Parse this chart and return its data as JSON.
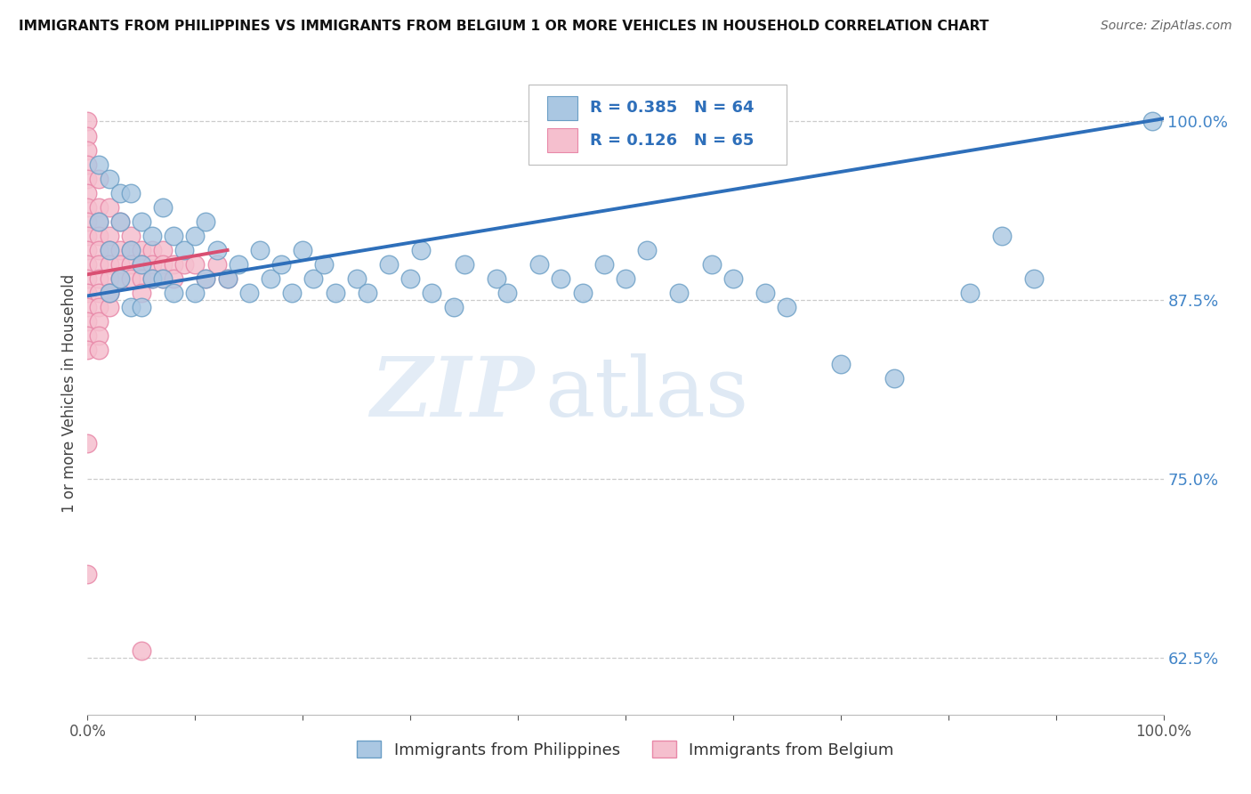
{
  "title": "IMMIGRANTS FROM PHILIPPINES VS IMMIGRANTS FROM BELGIUM 1 OR MORE VEHICLES IN HOUSEHOLD CORRELATION CHART",
  "source": "Source: ZipAtlas.com",
  "ylabel": "1 or more Vehicles in Household",
  "xlim": [
    0,
    1.0
  ],
  "ylim": [
    0.585,
    1.035
  ],
  "yticks": [
    0.625,
    0.75,
    0.875,
    1.0
  ],
  "ytick_labels": [
    "62.5%",
    "75.0%",
    "87.5%",
    "100.0%"
  ],
  "xticks": [
    0.0,
    0.1,
    0.2,
    0.3,
    0.4,
    0.5,
    0.6,
    0.7,
    0.8,
    0.9,
    1.0
  ],
  "xtick_labels": [
    "0.0%",
    "",
    "",
    "",
    "",
    "",
    "",
    "",
    "",
    "",
    "100.0%"
  ],
  "philippines_color": "#aac7e2",
  "philippines_edge": "#6a9ec5",
  "belgium_color": "#f5bfce",
  "belgium_edge": "#e888a8",
  "trend_philippines_color": "#2e6fba",
  "trend_belgium_color": "#d94f72",
  "R_philippines": 0.385,
  "N_philippines": 64,
  "R_belgium": 0.126,
  "N_belgium": 65,
  "legend_label_philippines": "Immigrants from Philippines",
  "legend_label_belgium": "Immigrants from Belgium",
  "background_color": "#ffffff",
  "watermark_zip": "ZIP",
  "watermark_atlas": "atlas",
  "philippines_x": [
    0.01,
    0.01,
    0.02,
    0.02,
    0.02,
    0.03,
    0.03,
    0.03,
    0.04,
    0.04,
    0.04,
    0.05,
    0.05,
    0.05,
    0.06,
    0.06,
    0.07,
    0.07,
    0.08,
    0.08,
    0.09,
    0.1,
    0.1,
    0.11,
    0.11,
    0.12,
    0.13,
    0.14,
    0.15,
    0.16,
    0.17,
    0.18,
    0.19,
    0.2,
    0.21,
    0.22,
    0.23,
    0.25,
    0.26,
    0.28,
    0.3,
    0.31,
    0.32,
    0.34,
    0.35,
    0.38,
    0.39,
    0.42,
    0.44,
    0.46,
    0.48,
    0.5,
    0.52,
    0.55,
    0.58,
    0.6,
    0.63,
    0.65,
    0.7,
    0.75,
    0.82,
    0.85,
    0.88,
    0.99
  ],
  "philippines_y": [
    0.97,
    0.93,
    0.96,
    0.91,
    0.88,
    0.95,
    0.93,
    0.89,
    0.95,
    0.91,
    0.87,
    0.93,
    0.9,
    0.87,
    0.92,
    0.89,
    0.94,
    0.89,
    0.92,
    0.88,
    0.91,
    0.92,
    0.88,
    0.93,
    0.89,
    0.91,
    0.89,
    0.9,
    0.88,
    0.91,
    0.89,
    0.9,
    0.88,
    0.91,
    0.89,
    0.9,
    0.88,
    0.89,
    0.88,
    0.9,
    0.89,
    0.91,
    0.88,
    0.87,
    0.9,
    0.89,
    0.88,
    0.9,
    0.89,
    0.88,
    0.9,
    0.89,
    0.91,
    0.88,
    0.9,
    0.89,
    0.88,
    0.87,
    0.83,
    0.82,
    0.88,
    0.92,
    0.89,
    1.0
  ],
  "belgium_x": [
    0.0,
    0.0,
    0.0,
    0.0,
    0.0,
    0.0,
    0.0,
    0.0,
    0.0,
    0.0,
    0.0,
    0.0,
    0.0,
    0.0,
    0.0,
    0.0,
    0.0,
    0.01,
    0.01,
    0.01,
    0.01,
    0.01,
    0.01,
    0.01,
    0.01,
    0.01,
    0.01,
    0.01,
    0.01,
    0.02,
    0.02,
    0.02,
    0.02,
    0.02,
    0.02,
    0.02,
    0.03,
    0.03,
    0.03,
    0.03,
    0.04,
    0.04,
    0.04,
    0.04,
    0.05,
    0.05,
    0.05,
    0.05,
    0.06,
    0.06,
    0.06,
    0.07,
    0.07,
    0.07,
    0.08,
    0.08,
    0.09,
    0.1,
    0.11,
    0.12,
    0.13,
    0.0,
    0.0,
    0.02,
    0.05
  ],
  "belgium_y": [
    1.0,
    0.99,
    0.98,
    0.97,
    0.96,
    0.95,
    0.94,
    0.93,
    0.92,
    0.91,
    0.9,
    0.89,
    0.88,
    0.87,
    0.86,
    0.85,
    0.84,
    0.96,
    0.94,
    0.93,
    0.92,
    0.91,
    0.9,
    0.89,
    0.88,
    0.87,
    0.86,
    0.85,
    0.84,
    0.94,
    0.92,
    0.91,
    0.9,
    0.89,
    0.88,
    0.87,
    0.93,
    0.91,
    0.9,
    0.89,
    0.92,
    0.91,
    0.9,
    0.89,
    0.91,
    0.9,
    0.89,
    0.88,
    0.91,
    0.9,
    0.89,
    0.91,
    0.9,
    0.89,
    0.9,
    0.89,
    0.9,
    0.9,
    0.89,
    0.9,
    0.89,
    0.775,
    0.683,
    0.88,
    0.63
  ],
  "trend_phil_x0": 0.0,
  "trend_phil_y0": 0.878,
  "trend_phil_x1": 1.0,
  "trend_phil_y1": 1.002,
  "trend_belg_x0": 0.0,
  "trend_belg_y0": 0.893,
  "trend_belg_x1": 0.13,
  "trend_belg_y1": 0.91
}
